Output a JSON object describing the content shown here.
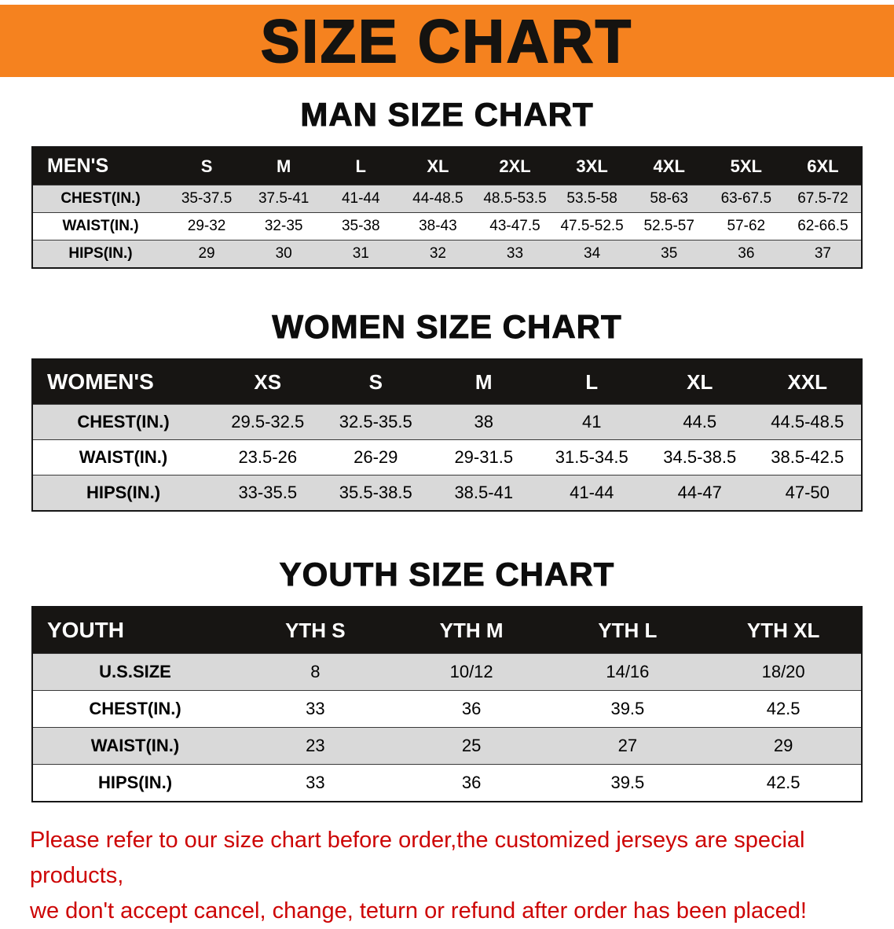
{
  "banner": {
    "title": "SIZE CHART"
  },
  "sections": [
    {
      "id": "men",
      "heading": "MAN SIZE CHART",
      "table": {
        "header": [
          "MEN'S",
          "S",
          "M",
          "L",
          "XL",
          "2XL",
          "3XL",
          "4XL",
          "5XL",
          "6XL"
        ],
        "rows": [
          [
            "CHEST(IN.)",
            "35-37.5",
            "37.5-41",
            "41-44",
            "44-48.5",
            "48.5-53.5",
            "53.5-58",
            "58-63",
            "63-67.5",
            "67.5-72"
          ],
          [
            "WAIST(IN.)",
            "29-32",
            "32-35",
            "35-38",
            "38-43",
            "43-47.5",
            "47.5-52.5",
            "52.5-57",
            "57-62",
            "62-66.5"
          ],
          [
            "HIPS(IN.)",
            "29",
            "30",
            "31",
            "32",
            "33",
            "34",
            "35",
            "36",
            "37"
          ]
        ]
      }
    },
    {
      "id": "women",
      "heading": "WOMEN SIZE CHART",
      "table": {
        "header": [
          "WOMEN'S",
          "XS",
          "S",
          "M",
          "L",
          "XL",
          "XXL"
        ],
        "rows": [
          [
            "CHEST(IN.)",
            "29.5-32.5",
            "32.5-35.5",
            "38",
            "41",
            "44.5",
            "44.5-48.5"
          ],
          [
            "WAIST(IN.)",
            "23.5-26",
            "26-29",
            "29-31.5",
            "31.5-34.5",
            "34.5-38.5",
            "38.5-42.5"
          ],
          [
            "HIPS(IN.)",
            "33-35.5",
            "35.5-38.5",
            "38.5-41",
            "41-44",
            "44-47",
            "47-50"
          ]
        ]
      }
    },
    {
      "id": "youth",
      "heading": "YOUTH SIZE CHART",
      "table": {
        "header": [
          "YOUTH",
          "YTH S",
          "YTH M",
          "YTH L",
          "YTH XL"
        ],
        "rows": [
          [
            "U.S.SIZE",
            "8",
            "10/12",
            "14/16",
            "18/20"
          ],
          [
            "CHEST(IN.)",
            "33",
            "36",
            "39.5",
            "42.5"
          ],
          [
            "WAIST(IN.)",
            "23",
            "25",
            "27",
            "29"
          ],
          [
            "HIPS(IN.)",
            "33",
            "36",
            "39.5",
            "42.5"
          ]
        ]
      }
    }
  ],
  "disclaimer": {
    "line1": "Please refer to our size chart before order,the customized jerseys are special products,",
    "line2": "we don't accept cancel, change, teturn or refund after order has been placed!"
  },
  "colors": {
    "banner_orange": "#f5821f",
    "header_black": "#171513",
    "row_gray": "#d9d9d9",
    "disclaimer_red": "#cd0505"
  }
}
